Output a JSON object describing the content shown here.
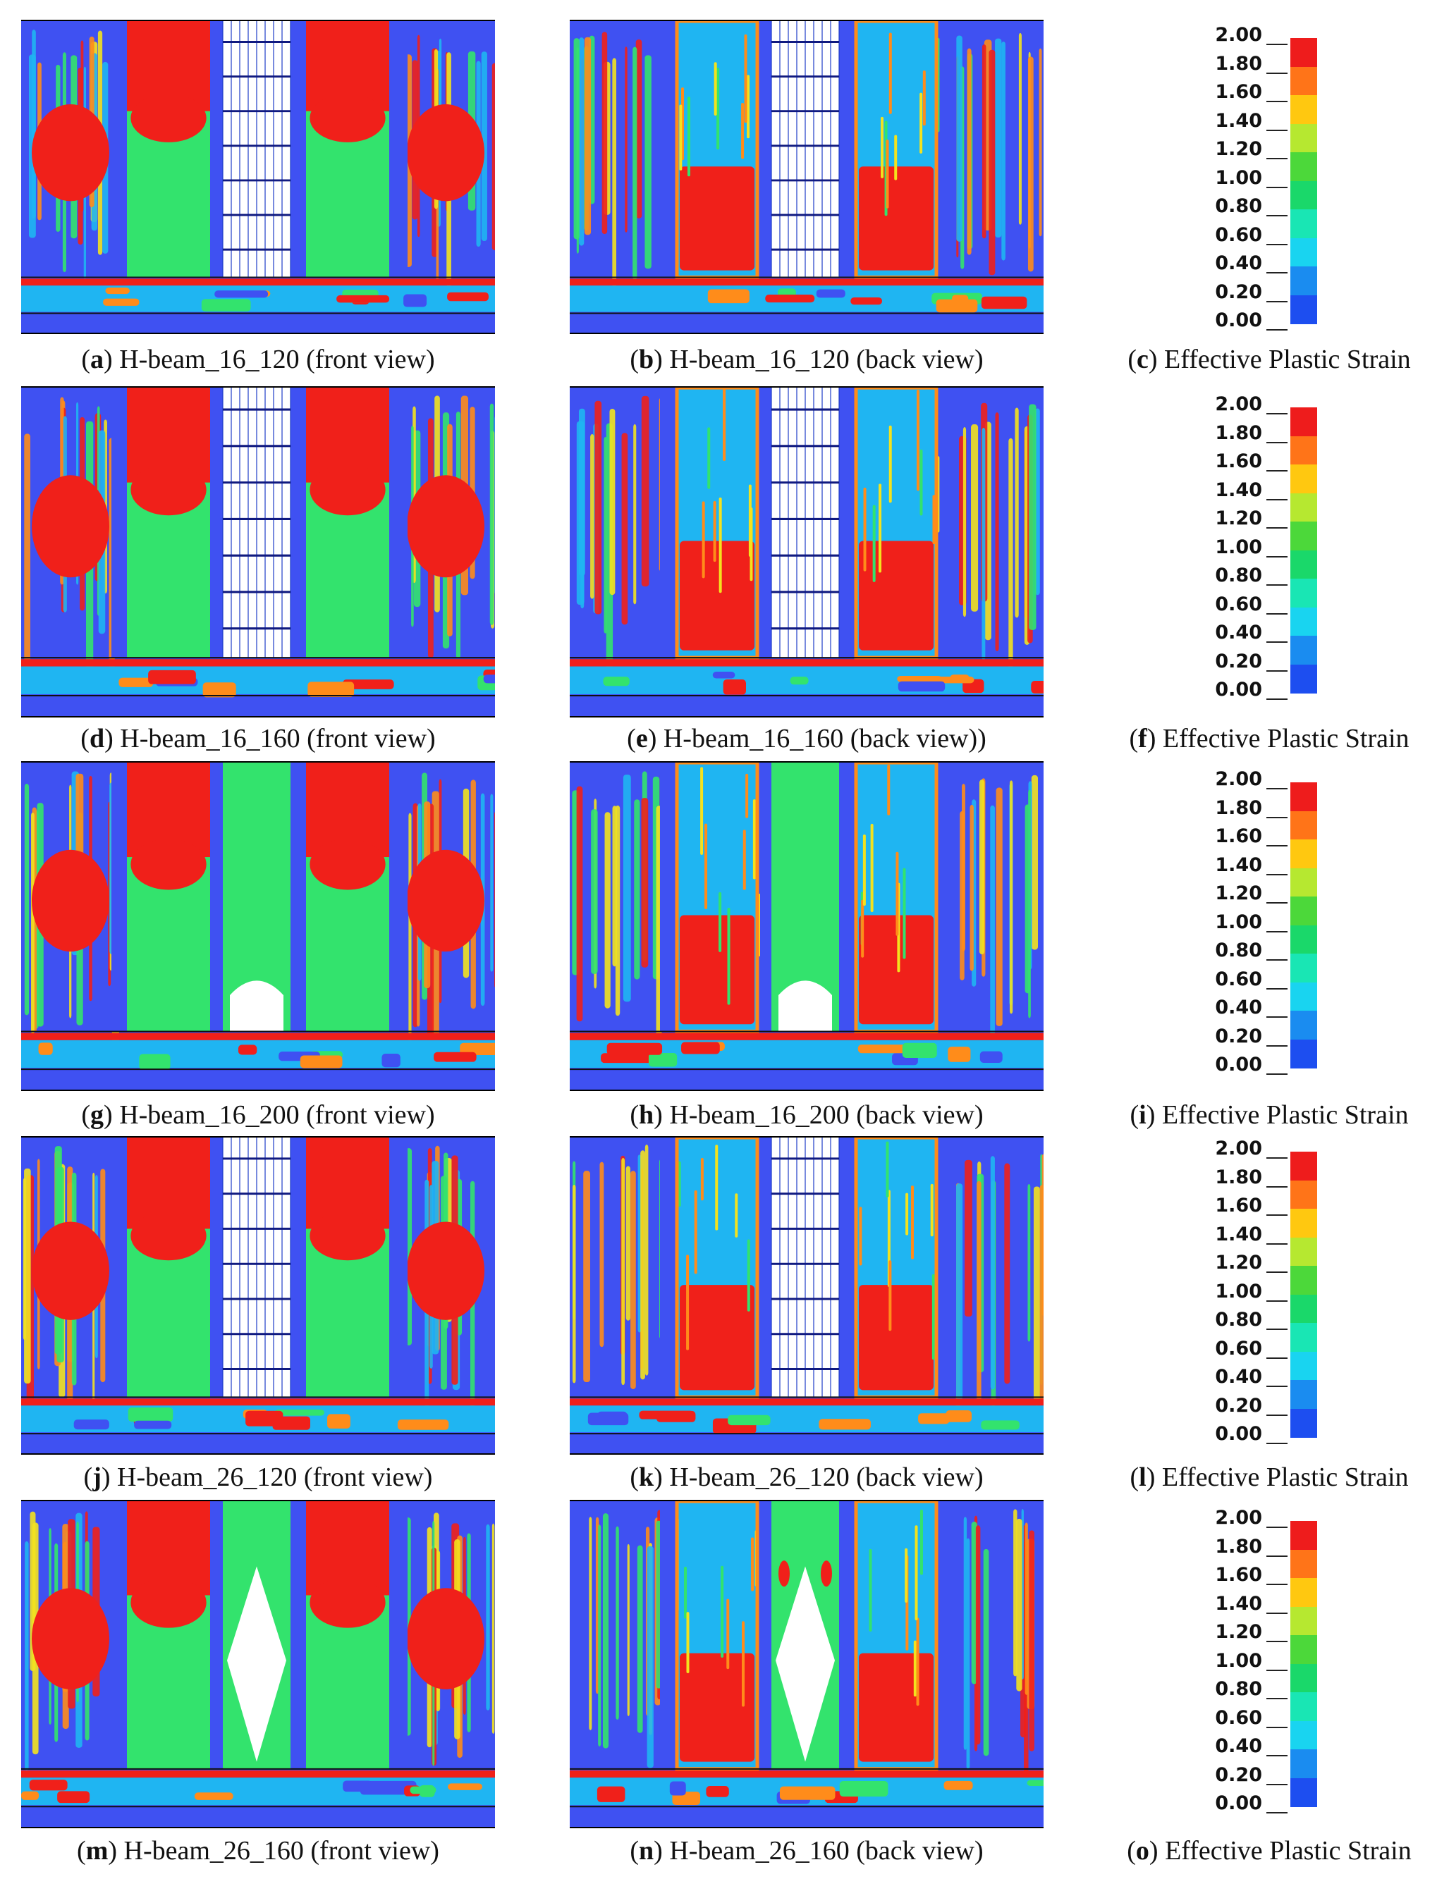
{
  "figure": {
    "panels": [
      {
        "id": "a",
        "label": "H-beam_16_120 (front view)",
        "view": "front",
        "variant": "grid"
      },
      {
        "id": "b",
        "label": "H-beam_16_120 (back view)",
        "view": "back",
        "variant": "grid"
      },
      {
        "id": "d",
        "label": "H-beam_16_160 (front view)",
        "view": "front",
        "variant": "grid"
      },
      {
        "id": "e",
        "label": "H-beam_16_160 (back view))",
        "view": "back",
        "variant": "grid"
      },
      {
        "id": "g",
        "label": "H-beam_16_200 (front view)",
        "view": "front",
        "variant": "arch"
      },
      {
        "id": "h",
        "label": "H-beam_16_200 (back view)",
        "view": "back",
        "variant": "arch"
      },
      {
        "id": "j",
        "label": "H-beam_26_120 (front view)",
        "view": "front",
        "variant": "grid"
      },
      {
        "id": "k",
        "label": "H-beam_26_120 (back view)",
        "view": "back",
        "variant": "grid"
      },
      {
        "id": "m",
        "label": "H-beam_26_160 (front view)",
        "view": "front",
        "variant": "diamond"
      },
      {
        "id": "n",
        "label": "H-beam_26_160 (back view)",
        "view": "back",
        "variant": "diamond"
      }
    ],
    "legends": [
      {
        "id": "c",
        "label": "Effective Plastic Strain"
      },
      {
        "id": "f",
        "label": "Effective Plastic Strain"
      },
      {
        "id": "i",
        "label": "Effective Plastic Strain"
      },
      {
        "id": "l",
        "label": "Effective Plastic Strain"
      },
      {
        "id": "o",
        "label": "Effective Plastic Strain"
      }
    ],
    "scale_ticks": [
      "2.00",
      "1.80",
      "1.60",
      "1.40",
      "1.20",
      "1.00",
      "0.80",
      "0.60",
      "0.40",
      "0.20",
      "0.00"
    ],
    "scale_colors": [
      "#ee1c1c",
      "#ff7418",
      "#ffc810",
      "#b6e830",
      "#4cd83a",
      "#1ad86a",
      "#19e6b4",
      "#19d4f0",
      "#1a8cf0",
      "#1d4ef0"
    ],
    "contour_colors": {
      "background": "#3f51f2",
      "high": "#f0201a",
      "mid": "#33e36d",
      "low": "#1fb5f2",
      "edge_orange": "#ff8c1a",
      "edge_yellow": "#f3e21e",
      "column": "#3f51f2",
      "opening": "#ffffff",
      "grid_line": "#1e3cc8"
    }
  }
}
